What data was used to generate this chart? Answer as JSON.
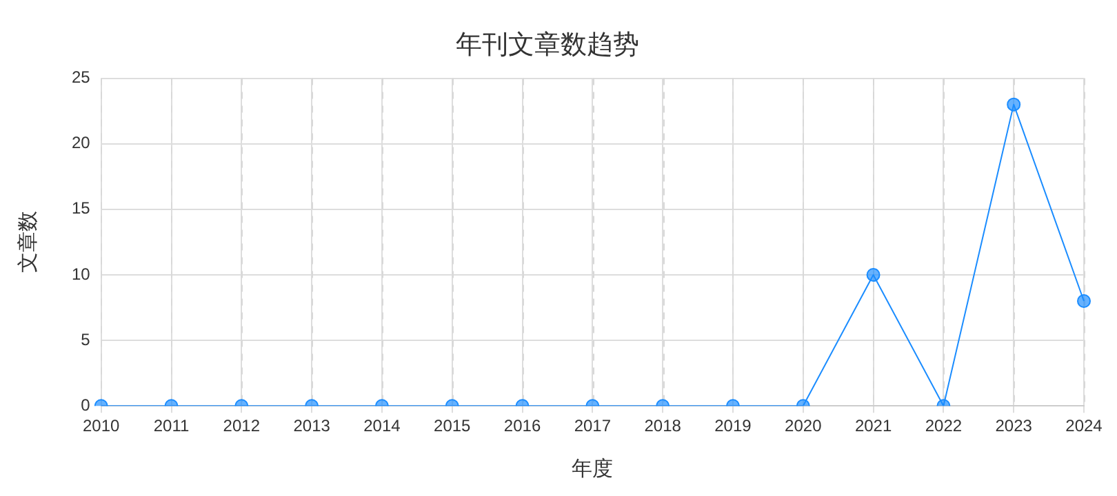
{
  "chart_data": {
    "type": "line",
    "title": "年刊文章数趋势",
    "xlabel": "年度",
    "ylabel": "文章数",
    "categories": [
      "2010",
      "2011",
      "2012",
      "2013",
      "2014",
      "2015",
      "2016",
      "2017",
      "2018",
      "2019",
      "2020",
      "2021",
      "2022",
      "2023",
      "2024"
    ],
    "series": [
      {
        "color": "#1a8cff",
        "values": [
          0,
          0,
          0,
          0,
          0,
          0,
          0,
          0,
          0,
          0,
          0,
          10,
          0,
          23,
          8
        ]
      }
    ],
    "ylim": [
      0,
      25
    ],
    "yticks": [
      0,
      5,
      10,
      15,
      20,
      25
    ],
    "grid": true,
    "legend": false,
    "marker": "circle",
    "line_style": "solid"
  }
}
